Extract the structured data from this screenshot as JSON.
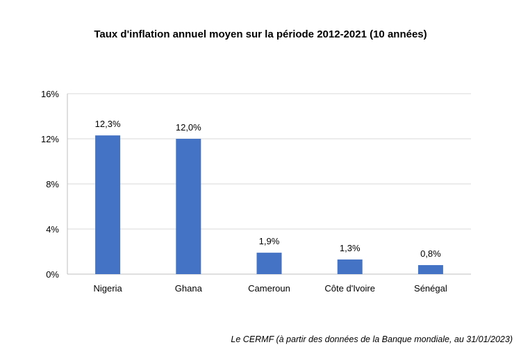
{
  "chart_data": {
    "type": "bar",
    "title": "Taux d'inflation  annuel moyen sur la période 2012-2021  (10 années)",
    "categories": [
      "Nigeria",
      "Ghana",
      "Cameroun",
      "Côte d'Ivoire",
      "Sénégal"
    ],
    "values": [
      12.3,
      12.0,
      1.9,
      1.3,
      0.8
    ],
    "data_labels": [
      "12,3%",
      "12,0%",
      "1,9%",
      "1,3%",
      "0,8%"
    ],
    "ylim": [
      0,
      16
    ],
    "yticks": [
      0,
      4,
      8,
      12,
      16
    ],
    "ytick_labels": [
      "0%",
      "4%",
      "8%",
      "12%",
      "16%"
    ],
    "grid": true,
    "bar_color": "#4472C4",
    "grid_color": "#D9D9D9",
    "xlabel": "",
    "ylabel": ""
  },
  "source": "Le CERMF (à partir des données de la Banque mondiale, au 31/01/2023)"
}
